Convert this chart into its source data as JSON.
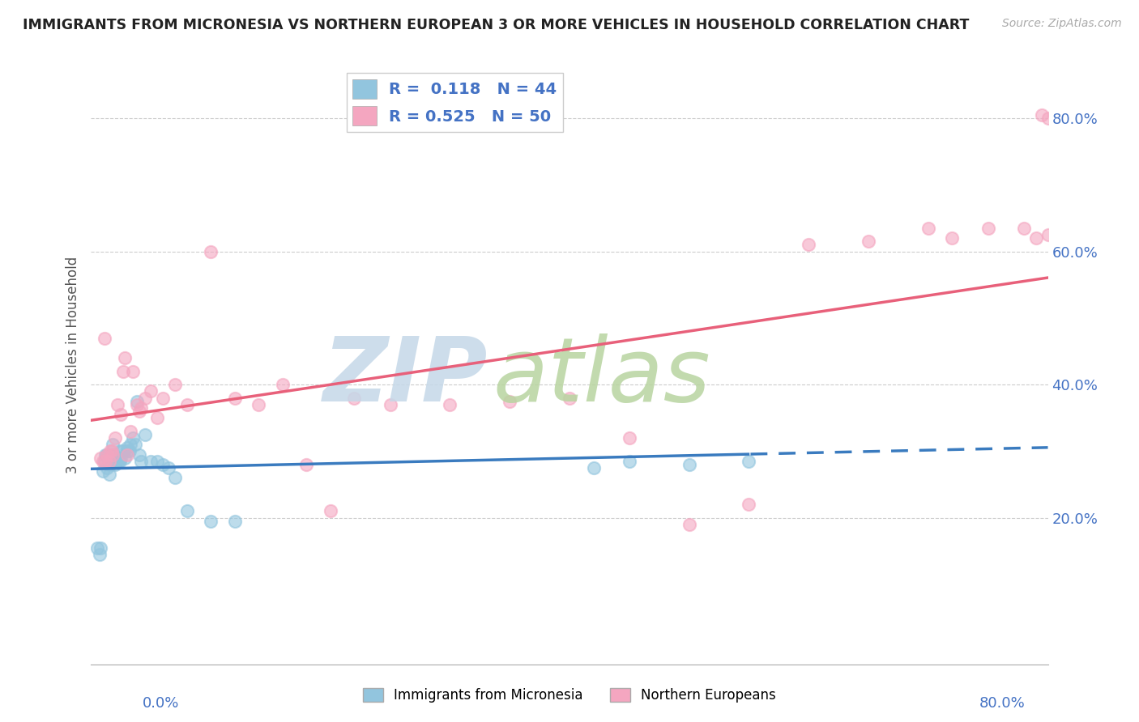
{
  "title": "IMMIGRANTS FROM MICRONESIA VS NORTHERN EUROPEAN 3 OR MORE VEHICLES IN HOUSEHOLD CORRELATION CHART",
  "source": "Source: ZipAtlas.com",
  "ylabel": "3 or more Vehicles in Household",
  "ytick_vals": [
    0.2,
    0.4,
    0.6,
    0.8
  ],
  "blue_color": "#92c5de",
  "pink_color": "#f4a6c0",
  "blue_line_color": "#3a7bbf",
  "pink_line_color": "#e8607a",
  "blue_R": 0.118,
  "blue_N": 44,
  "pink_R": 0.525,
  "pink_N": 50,
  "xlim": [
    0.0,
    0.8
  ],
  "ylim": [
    -0.02,
    0.88
  ],
  "blue_scatter_x": [
    0.005,
    0.007,
    0.008,
    0.01,
    0.011,
    0.012,
    0.013,
    0.013,
    0.015,
    0.016,
    0.017,
    0.018,
    0.019,
    0.02,
    0.021,
    0.022,
    0.023,
    0.024,
    0.025,
    0.025,
    0.027,
    0.028,
    0.03,
    0.03,
    0.032,
    0.033,
    0.035,
    0.037,
    0.038,
    0.04,
    0.042,
    0.045,
    0.05,
    0.055,
    0.06,
    0.065,
    0.07,
    0.08,
    0.1,
    0.12,
    0.42,
    0.45,
    0.5,
    0.55
  ],
  "blue_scatter_y": [
    0.155,
    0.145,
    0.155,
    0.27,
    0.285,
    0.295,
    0.295,
    0.275,
    0.265,
    0.28,
    0.295,
    0.31,
    0.295,
    0.28,
    0.285,
    0.29,
    0.285,
    0.285,
    0.29,
    0.3,
    0.3,
    0.29,
    0.3,
    0.305,
    0.3,
    0.31,
    0.32,
    0.31,
    0.375,
    0.295,
    0.285,
    0.325,
    0.285,
    0.285,
    0.28,
    0.275,
    0.26,
    0.21,
    0.195,
    0.195,
    0.275,
    0.285,
    0.28,
    0.285
  ],
  "pink_scatter_x": [
    0.008,
    0.01,
    0.011,
    0.012,
    0.013,
    0.015,
    0.016,
    0.017,
    0.018,
    0.02,
    0.022,
    0.025,
    0.027,
    0.028,
    0.03,
    0.033,
    0.035,
    0.038,
    0.04,
    0.042,
    0.045,
    0.05,
    0.055,
    0.06,
    0.07,
    0.08,
    0.1,
    0.12,
    0.14,
    0.16,
    0.18,
    0.2,
    0.22,
    0.25,
    0.3,
    0.35,
    0.4,
    0.45,
    0.5,
    0.55,
    0.6,
    0.65,
    0.7,
    0.72,
    0.75,
    0.78,
    0.79,
    0.795,
    0.8,
    0.8
  ],
  "pink_scatter_y": [
    0.29,
    0.285,
    0.47,
    0.285,
    0.295,
    0.285,
    0.3,
    0.3,
    0.295,
    0.32,
    0.37,
    0.355,
    0.42,
    0.44,
    0.295,
    0.33,
    0.42,
    0.37,
    0.36,
    0.365,
    0.38,
    0.39,
    0.35,
    0.38,
    0.4,
    0.37,
    0.6,
    0.38,
    0.37,
    0.4,
    0.28,
    0.21,
    0.38,
    0.37,
    0.37,
    0.375,
    0.38,
    0.32,
    0.19,
    0.22,
    0.61,
    0.615,
    0.635,
    0.62,
    0.635,
    0.635,
    0.62,
    0.805,
    0.625,
    0.8
  ],
  "watermark_zip_color": "#c5d8e8",
  "watermark_atlas_color": "#b8d4a0",
  "tick_label_color": "#4472c4",
  "source_color": "#aaaaaa",
  "title_color": "#222222",
  "grid_color": "#cccccc"
}
